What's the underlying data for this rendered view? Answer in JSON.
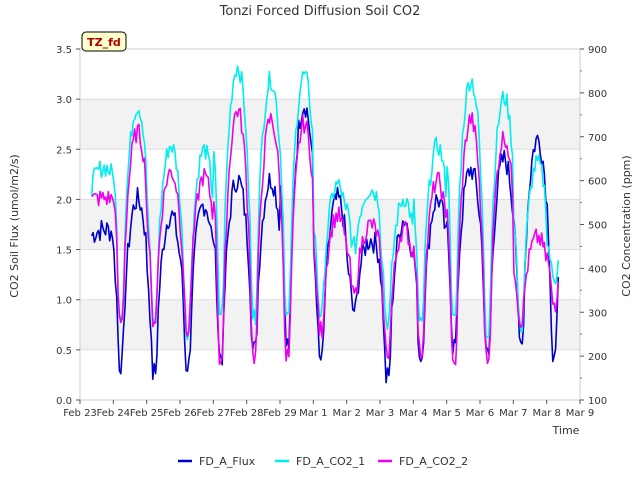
{
  "chart_data": {
    "type": "line",
    "title": "Tonzi Forced Diffusion Soil CO2",
    "xlabel": "Time",
    "ylabel_left": "CO2 Soil Flux (umol/m2/s)",
    "ylabel_right": "CO2 Concentration (ppm)",
    "site_badge": "TZ_fd",
    "x_ticks": [
      "Feb 23",
      "Feb 24",
      "Feb 25",
      "Feb 26",
      "Feb 27",
      "Feb 28",
      "Feb 29",
      "Mar 1",
      "Mar 2",
      "Mar 3",
      "Mar 4",
      "Mar 5",
      "Mar 6",
      "Mar 7",
      "Mar 8",
      "Mar 9"
    ],
    "xlim_days": [
      0,
      15
    ],
    "ylim_left": [
      0,
      3.5
    ],
    "yticks_left": [
      "0.0",
      "0.5",
      "1.0",
      "1.5",
      "2.0",
      "2.5",
      "3.0",
      "3.5"
    ],
    "ylim_right": [
      100,
      900
    ],
    "yticks_right": [
      "100",
      "200",
      "300",
      "400",
      "500",
      "600",
      "700",
      "800",
      "900"
    ],
    "grid": true,
    "legend_position": "bottom",
    "series": [
      {
        "name": "FD_A_Flux",
        "axis": "left",
        "color": "#0000cc",
        "daily_min": [
          1.6,
          0.37,
          0.27,
          0.35,
          0.45,
          0.5,
          0.55,
          0.4,
          0.9,
          0.22,
          0.45,
          0.55,
          0.45,
          0.55,
          0.4
        ],
        "daily_max": [
          1.7,
          2.0,
          1.85,
          1.95,
          2.2,
          2.2,
          2.95,
          2.0,
          1.6,
          1.8,
          2.0,
          2.3,
          2.4,
          2.6,
          2.7
        ]
      },
      {
        "name": "FD_A_CO2_1",
        "axis": "right",
        "color": "#00eeee",
        "daily_min": [
          560,
          300,
          280,
          260,
          300,
          290,
          290,
          300,
          450,
          280,
          270,
          280,
          260,
          270,
          380
        ],
        "daily_max": [
          630,
          770,
          680,
          670,
          860,
          830,
          840,
          590,
          580,
          560,
          680,
          830,
          790,
          640,
          500
        ]
      },
      {
        "name": "FD_A_CO2_2",
        "axis": "right",
        "color": "#ee00ee",
        "daily_min": [
          555,
          280,
          285,
          260,
          195,
          200,
          200,
          260,
          340,
          210,
          210,
          175,
          195,
          285,
          320
        ],
        "daily_max": [
          560,
          710,
          620,
          610,
          760,
          740,
          730,
          520,
          500,
          490,
          600,
          740,
          700,
          470,
          480
        ]
      }
    ]
  }
}
